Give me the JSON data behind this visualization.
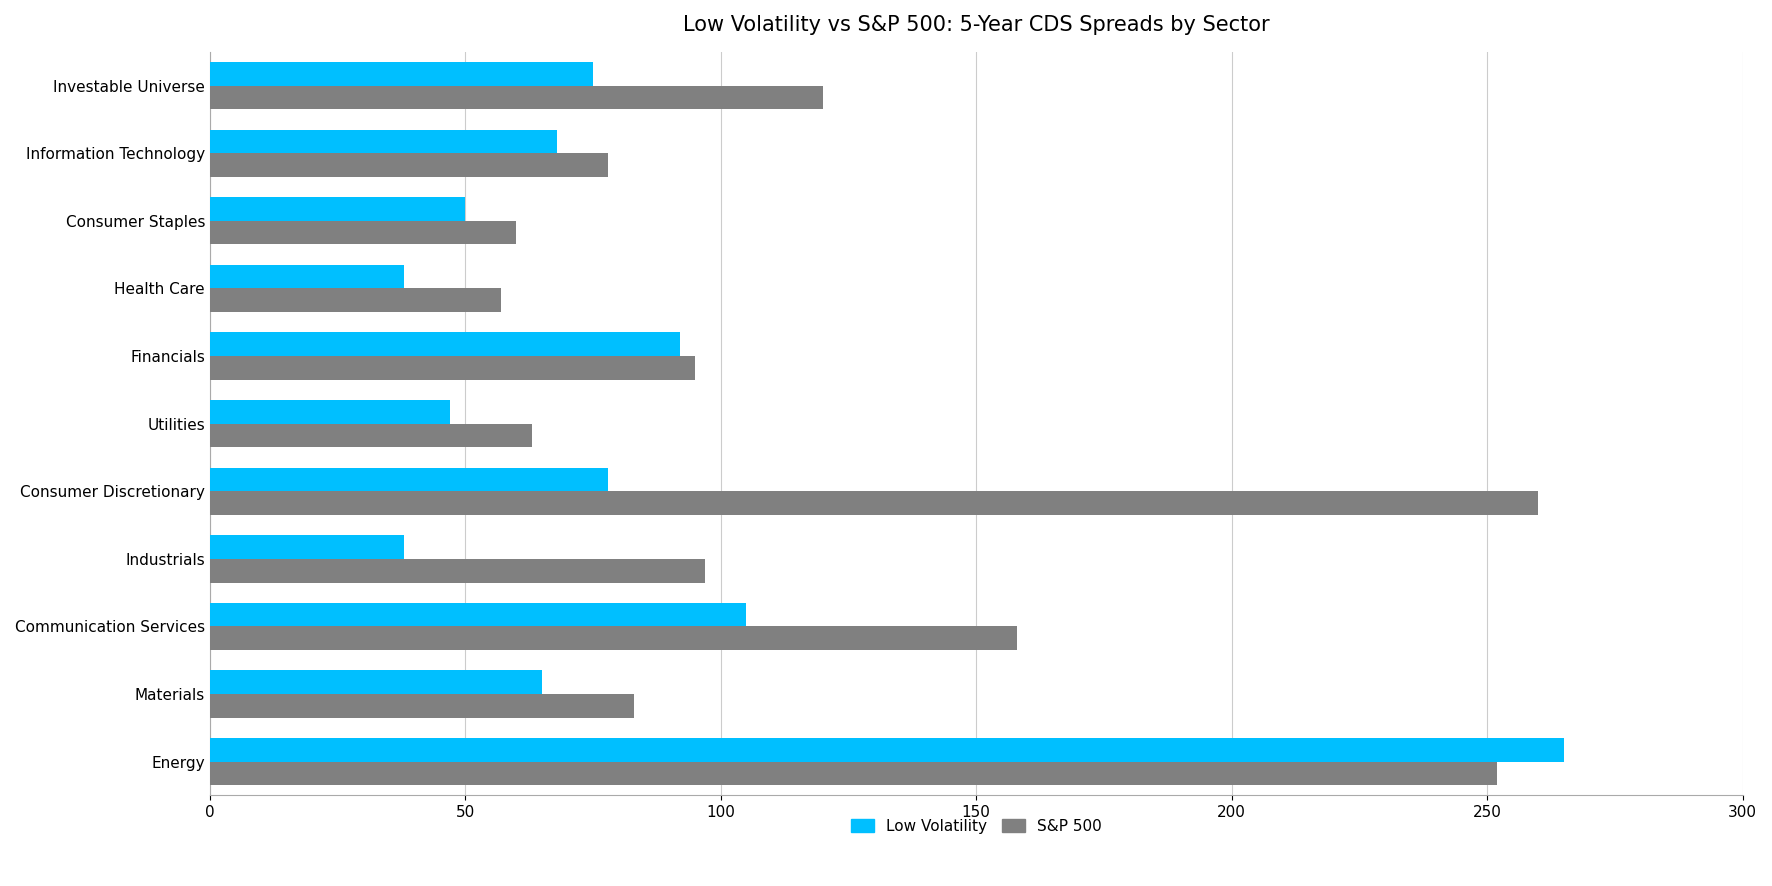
{
  "title": "Low Volatility vs S&P 500: 5-Year CDS Spreads by Sector",
  "categories": [
    "Investable Universe",
    "Information Technology",
    "Consumer Staples",
    "Health Care",
    "Financials",
    "Utilities",
    "Consumer Discretionary",
    "Industrials",
    "Communication Services",
    "Materials",
    "Energy"
  ],
  "low_volatility": [
    75,
    68,
    50,
    38,
    92,
    47,
    78,
    38,
    105,
    65,
    265
  ],
  "sp500": [
    120,
    78,
    60,
    57,
    95,
    63,
    260,
    97,
    158,
    83,
    252
  ],
  "low_vol_color": "#00bfff",
  "sp500_color": "#808080",
  "background_color": "#ffffff",
  "xlim": [
    0,
    300
  ],
  "xticks": [
    0,
    50,
    100,
    150,
    200,
    250,
    300
  ],
  "bar_height": 0.35,
  "legend_labels": [
    "Low Volatility",
    "S&P 500"
  ],
  "title_fontsize": 15,
  "axis_fontsize": 11,
  "tick_fontsize": 11,
  "legend_fontsize": 11
}
